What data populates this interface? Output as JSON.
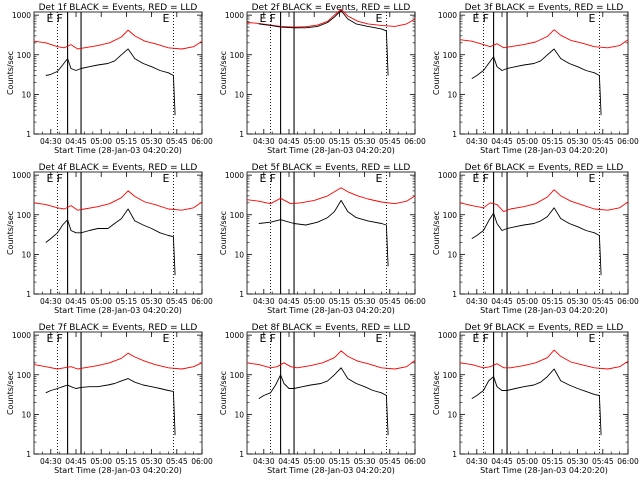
{
  "chart_data": {
    "type": "line",
    "layout": "3x3 grid",
    "x_tick_labels": [
      "04:30",
      "04:45",
      "05:00",
      "05:15",
      "05:30",
      "05:45",
      "06:00"
    ],
    "x_tick_minutes": [
      10,
      25,
      40,
      55,
      70,
      85,
      100
    ],
    "xlim_minutes": [
      0,
      100
    ],
    "y_tick_labels": [
      "1",
      "10",
      "100",
      "1000"
    ],
    "y_tick_values": [
      1,
      10,
      100,
      1000
    ],
    "ylim": [
      1,
      1200
    ],
    "y_scale": "log",
    "ylabel": "Counts/sec",
    "xlabel": "Start Time (28-Jan-03 04:20:20)",
    "colors": {
      "events": "#000000",
      "lld": "#ff0000"
    },
    "panels": [
      {
        "title": "Det 1f BLACK = Events, RED = LLD",
        "markers": [
          "E",
          "F",
          "E"
        ],
        "marker_lines": [
          {
            "x": 14,
            "style": "dotted"
          },
          {
            "x": 20,
            "style": "solid"
          },
          {
            "x": 28,
            "style": "solid"
          },
          {
            "x": 83,
            "style": "dotted"
          }
        ],
        "series": [
          {
            "name": "Events",
            "x": [
              7,
              10,
              14,
              17,
              20,
              22,
              25,
              28,
              33,
              38,
              44,
              48,
              52,
              56,
              60,
              65,
              70,
              75,
              80,
              83,
              84
            ],
            "values": [
              30,
              32,
              38,
              55,
              80,
              45,
              40,
              45,
              50,
              55,
              60,
              70,
              100,
              140,
              80,
              60,
              50,
              40,
              35,
              30,
              3
            ]
          },
          {
            "name": "LLD",
            "x": [
              0,
              7,
              14,
              18,
              22,
              26,
              30,
              38,
              45,
              52,
              56,
              60,
              66,
              72,
              80,
              88,
              95,
              100
            ],
            "values": [
              220,
              200,
              160,
              150,
              180,
              140,
              150,
              170,
              200,
              280,
              420,
              300,
              220,
              190,
              150,
              140,
              160,
              220
            ]
          }
        ]
      },
      {
        "title": "Det 2f BLACK = Events, RED = LLD",
        "markers": [
          "E",
          "F",
          "E"
        ],
        "marker_lines": [
          {
            "x": 14,
            "style": "dotted"
          },
          {
            "x": 20,
            "style": "solid"
          },
          {
            "x": 28,
            "style": "solid"
          },
          {
            "x": 83,
            "style": "dotted"
          }
        ],
        "series": [
          {
            "name": "Events",
            "x": [
              7,
              14,
              20,
              28,
              35,
              42,
              48,
              52,
              56,
              60,
              65,
              72,
              80,
              83,
              84
            ],
            "values": [
              600,
              550,
              500,
              480,
              480,
              520,
              650,
              900,
              1300,
              800,
              600,
              520,
              450,
              400,
              30
            ]
          },
          {
            "name": "LLD",
            "x": [
              0,
              7,
              14,
              20,
              28,
              35,
              42,
              48,
              52,
              56,
              60,
              66,
              72,
              80,
              88,
              95,
              100
            ],
            "values": [
              650,
              620,
              560,
              520,
              500,
              510,
              560,
              700,
              1000,
              1400,
              950,
              700,
              600,
              550,
              520,
              600,
              800
            ]
          }
        ]
      },
      {
        "title": "Det 3f BLACK = Events, RED = LLD",
        "markers": [
          "E",
          "F",
          "E"
        ],
        "marker_lines": [
          {
            "x": 14,
            "style": "dotted"
          },
          {
            "x": 20,
            "style": "solid"
          },
          {
            "x": 28,
            "style": "solid"
          },
          {
            "x": 83,
            "style": "dotted"
          }
        ],
        "series": [
          {
            "name": "Events",
            "x": [
              7,
              10,
              14,
              17,
              20,
              22,
              25,
              28,
              33,
              38,
              44,
              48,
              52,
              56,
              60,
              65,
              70,
              75,
              80,
              83,
              84
            ],
            "values": [
              25,
              30,
              40,
              60,
              90,
              50,
              40,
              45,
              50,
              55,
              60,
              70,
              100,
              140,
              80,
              60,
              50,
              40,
              35,
              30,
              3
            ]
          },
          {
            "name": "LLD",
            "x": [
              0,
              7,
              14,
              18,
              22,
              26,
              30,
              38,
              45,
              52,
              56,
              60,
              66,
              72,
              80,
              88,
              95,
              100
            ],
            "values": [
              240,
              220,
              180,
              160,
              190,
              150,
              160,
              180,
              210,
              290,
              430,
              310,
              230,
              200,
              160,
              150,
              170,
              240
            ]
          }
        ]
      },
      {
        "title": "Det 4f BLACK = Events, RED = LLD",
        "markers": [
          "E",
          "F",
          "E"
        ],
        "marker_lines": [
          {
            "x": 14,
            "style": "dotted"
          },
          {
            "x": 20,
            "style": "solid"
          },
          {
            "x": 28,
            "style": "solid"
          },
          {
            "x": 83,
            "style": "dotted"
          }
        ],
        "series": [
          {
            "name": "Events",
            "x": [
              7,
              10,
              14,
              17,
              20,
              22,
              25,
              28,
              33,
              38,
              44,
              48,
              52,
              56,
              60,
              65,
              70,
              75,
              80,
              83,
              84
            ],
            "values": [
              20,
              25,
              35,
              55,
              75,
              40,
              35,
              35,
              40,
              45,
              45,
              60,
              80,
              140,
              70,
              55,
              45,
              35,
              30,
              28,
              3
            ]
          },
          {
            "name": "LLD",
            "x": [
              0,
              7,
              14,
              18,
              22,
              26,
              30,
              38,
              45,
              52,
              56,
              60,
              66,
              72,
              80,
              88,
              95,
              100
            ],
            "values": [
              200,
              180,
              150,
              140,
              170,
              130,
              140,
              160,
              190,
              270,
              400,
              290,
              210,
              180,
              140,
              130,
              150,
              210
            ]
          }
        ]
      },
      {
        "title": "Det 5f BLACK = Events, RED = LLD",
        "markers": [
          "E",
          "F",
          "E"
        ],
        "marker_lines": [
          {
            "x": 14,
            "style": "dotted"
          },
          {
            "x": 20,
            "style": "solid"
          },
          {
            "x": 28,
            "style": "solid"
          },
          {
            "x": 83,
            "style": "dotted"
          }
        ],
        "series": [
          {
            "name": "Events",
            "x": [
              7,
              14,
              20,
              28,
              35,
              42,
              48,
              52,
              56,
              60,
              65,
              72,
              80,
              83,
              84
            ],
            "values": [
              60,
              65,
              75,
              60,
              55,
              65,
              85,
              120,
              230,
              120,
              85,
              70,
              60,
              55,
              5
            ]
          },
          {
            "name": "LLD",
            "x": [
              0,
              7,
              14,
              20,
              26,
              32,
              40,
              48,
              52,
              56,
              60,
              66,
              72,
              80,
              88,
              95,
              100
            ],
            "values": [
              240,
              220,
              190,
              260,
              190,
              200,
              230,
              300,
              380,
              480,
              380,
              300,
              250,
              210,
              190,
              220,
              300
            ]
          }
        ]
      },
      {
        "title": "Det 6f BLACK = Events, RED = LLD",
        "markers": [
          "E",
          "F",
          "E"
        ],
        "marker_lines": [
          {
            "x": 14,
            "style": "dotted"
          },
          {
            "x": 20,
            "style": "solid"
          },
          {
            "x": 28,
            "style": "solid"
          },
          {
            "x": 83,
            "style": "dotted"
          }
        ],
        "series": [
          {
            "name": "Events",
            "x": [
              7,
              10,
              14,
              17,
              20,
              22,
              25,
              28,
              33,
              38,
              44,
              48,
              52,
              56,
              60,
              65,
              70,
              75,
              80,
              83,
              84
            ],
            "values": [
              25,
              30,
              40,
              70,
              110,
              60,
              40,
              45,
              50,
              55,
              60,
              70,
              90,
              150,
              80,
              60,
              50,
              40,
              35,
              30,
              3
            ]
          },
          {
            "name": "LLD",
            "x": [
              0,
              7,
              14,
              18,
              22,
              26,
              30,
              38,
              45,
              52,
              56,
              60,
              66,
              72,
              80,
              88,
              95,
              100
            ],
            "values": [
              200,
              170,
              150,
              200,
              180,
              120,
              140,
              160,
              190,
              280,
              430,
              300,
              220,
              180,
              140,
              130,
              150,
              210
            ]
          }
        ]
      },
      {
        "title": "Det 7f BLACK = Events, RED = LLD",
        "markers": [
          "E",
          "F",
          "E"
        ],
        "marker_lines": [
          {
            "x": 14,
            "style": "dotted"
          },
          {
            "x": 20,
            "style": "solid"
          },
          {
            "x": 28,
            "style": "solid"
          },
          {
            "x": 83,
            "style": "dotted"
          }
        ],
        "series": [
          {
            "name": "Events",
            "x": [
              7,
              10,
              14,
              17,
              20,
              22,
              25,
              28,
              33,
              38,
              44,
              48,
              52,
              56,
              60,
              65,
              70,
              75,
              80,
              83,
              84
            ],
            "values": [
              35,
              40,
              45,
              50,
              55,
              50,
              45,
              48,
              50,
              50,
              55,
              60,
              70,
              80,
              65,
              55,
              50,
              45,
              40,
              38,
              3
            ]
          },
          {
            "name": "LLD",
            "x": [
              0,
              7,
              14,
              18,
              22,
              26,
              30,
              38,
              45,
              52,
              56,
              60,
              66,
              72,
              80,
              88,
              95,
              100
            ],
            "values": [
              180,
              160,
              140,
              150,
              160,
              140,
              150,
              170,
              200,
              260,
              350,
              280,
              220,
              180,
              150,
              140,
              160,
              200
            ]
          }
        ]
      },
      {
        "title": "Det 8f BLACK = Events, RED = LLD",
        "markers": [
          "E",
          "F",
          "E"
        ],
        "marker_lines": [
          {
            "x": 14,
            "style": "dotted"
          },
          {
            "x": 20,
            "style": "solid"
          },
          {
            "x": 28,
            "style": "solid"
          },
          {
            "x": 83,
            "style": "dotted"
          }
        ],
        "series": [
          {
            "name": "Events",
            "x": [
              7,
              10,
              14,
              17,
              20,
              22,
              25,
              28,
              33,
              38,
              44,
              48,
              52,
              56,
              60,
              65,
              70,
              75,
              80,
              83,
              84
            ],
            "values": [
              25,
              30,
              35,
              55,
              100,
              60,
              45,
              45,
              50,
              55,
              60,
              70,
              100,
              150,
              80,
              60,
              50,
              40,
              35,
              30,
              3
            ]
          },
          {
            "name": "LLD",
            "x": [
              0,
              7,
              14,
              18,
              22,
              26,
              30,
              38,
              45,
              52,
              56,
              60,
              66,
              72,
              80,
              88,
              95,
              100
            ],
            "values": [
              200,
              180,
              150,
              160,
              200,
              160,
              150,
              170,
              200,
              270,
              400,
              290,
              220,
              190,
              150,
              140,
              160,
              230
            ]
          }
        ]
      },
      {
        "title": "Det 9f BLACK = Events, RED = LLD",
        "markers": [
          "E",
          "F",
          "E"
        ],
        "marker_lines": [
          {
            "x": 14,
            "style": "dotted"
          },
          {
            "x": 20,
            "style": "solid"
          },
          {
            "x": 28,
            "style": "solid"
          },
          {
            "x": 83,
            "style": "dotted"
          }
        ],
        "series": [
          {
            "name": "Events",
            "x": [
              7,
              10,
              14,
              17,
              20,
              22,
              25,
              28,
              33,
              38,
              44,
              48,
              52,
              56,
              60,
              65,
              70,
              75,
              80,
              83,
              84
            ],
            "values": [
              25,
              30,
              40,
              70,
              90,
              50,
              40,
              40,
              45,
              50,
              55,
              65,
              90,
              140,
              70,
              55,
              45,
              38,
              32,
              30,
              3
            ]
          },
          {
            "name": "LLD",
            "x": [
              0,
              7,
              14,
              18,
              22,
              26,
              30,
              38,
              45,
              52,
              56,
              60,
              66,
              72,
              80,
              88,
              95,
              100
            ],
            "values": [
              200,
              180,
              150,
              160,
              190,
              150,
              150,
              170,
              200,
              270,
              420,
              290,
              210,
              180,
              150,
              140,
              160,
              220
            ]
          }
        ]
      }
    ]
  }
}
